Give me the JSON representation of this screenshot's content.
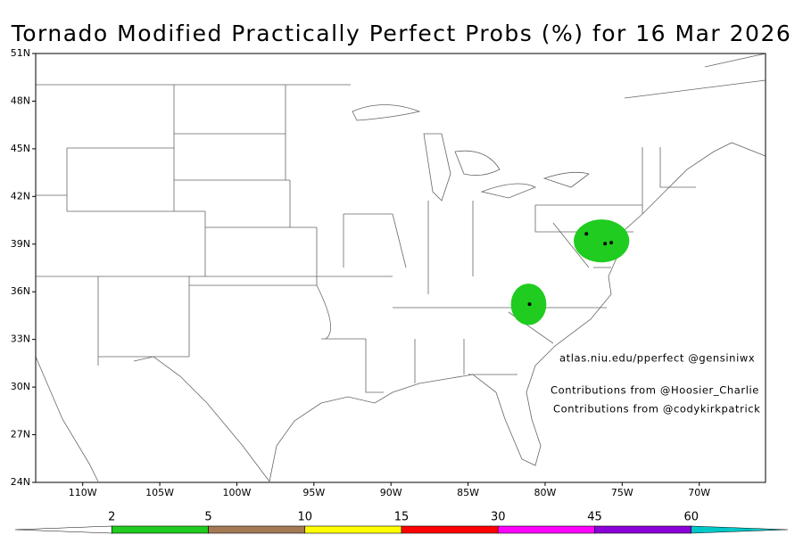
{
  "title": "Tornado Modified Practically Perfect Probs (%) for 16 Mar 2026",
  "map": {
    "xlim": [
      -113.05,
      -65.7
    ],
    "ylim": [
      24,
      51
    ],
    "xticks": [
      {
        "value": -110,
        "label": "110W"
      },
      {
        "value": -105,
        "label": "105W"
      },
      {
        "value": -100,
        "label": "100W"
      },
      {
        "value": -95,
        "label": "95W"
      },
      {
        "value": -90,
        "label": "90W"
      },
      {
        "value": -85,
        "label": "85W"
      },
      {
        "value": -80,
        "label": "80W"
      },
      {
        "value": -75,
        "label": "75W"
      },
      {
        "value": -70,
        "label": "70W"
      }
    ],
    "yticks": [
      {
        "value": 24,
        "label": "24N"
      },
      {
        "value": 27,
        "label": "27N"
      },
      {
        "value": 30,
        "label": "30N"
      },
      {
        "value": 33,
        "label": "33N"
      },
      {
        "value": 36,
        "label": "36N"
      },
      {
        "value": 39,
        "label": "39N"
      },
      {
        "value": 42,
        "label": "42N"
      },
      {
        "value": 45,
        "label": "45N"
      },
      {
        "value": 48,
        "label": "48N"
      },
      {
        "value": 51,
        "label": "51N"
      }
    ],
    "probability_areas": [
      {
        "level": 2,
        "lon": -81.07,
        "lat": 35.21,
        "rx_deg": 1.15,
        "ry_deg": 1.3
      },
      {
        "level": 2,
        "lon": -76.34,
        "lat": 39.2,
        "rx_deg": 1.8,
        "ry_deg": 1.35
      }
    ],
    "reports": [
      {
        "lon": -81.01,
        "lat": 35.22
      },
      {
        "lon": -77.32,
        "lat": 39.65
      },
      {
        "lon": -76.11,
        "lat": 39.03
      },
      {
        "lon": -75.71,
        "lat": 39.09
      }
    ]
  },
  "annotations": [
    "atlas.niu.edu/pperfect @gensiniwx",
    "Contributions from @Hoosier_Charlie",
    "Contributions from @codykirkpatrick"
  ],
  "colorbar": {
    "levels": [
      2,
      5,
      10,
      15,
      30,
      45,
      60
    ],
    "colors": [
      "#ffffff",
      "#1fcc1f",
      "#a47a55",
      "#ffff00",
      "#ff0000",
      "#ff00ff",
      "#8b00d6",
      "#00c8c8"
    ]
  }
}
